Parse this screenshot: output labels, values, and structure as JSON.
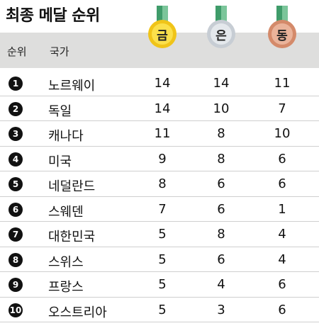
{
  "title": "최종 메달 순위",
  "header": {
    "rank_label": "순위",
    "country_label": "국가"
  },
  "medals": {
    "gold": {
      "label": "금",
      "color": "#f0c419"
    },
    "silver": {
      "label": "은",
      "color": "#c7cdd4"
    },
    "bronze": {
      "label": "동",
      "color": "#d48a6a"
    }
  },
  "rows": [
    {
      "rank": "1",
      "country": "노르웨이",
      "gold": "14",
      "silver": "14",
      "bronze": "11"
    },
    {
      "rank": "2",
      "country": "독일",
      "gold": "14",
      "silver": "10",
      "bronze": "7"
    },
    {
      "rank": "3",
      "country": "캐나다",
      "gold": "11",
      "silver": "8",
      "bronze": "10"
    },
    {
      "rank": "4",
      "country": "미국",
      "gold": "9",
      "silver": "8",
      "bronze": "6"
    },
    {
      "rank": "5",
      "country": "네덜란드",
      "gold": "8",
      "silver": "6",
      "bronze": "6"
    },
    {
      "rank": "6",
      "country": "스웨덴",
      "gold": "7",
      "silver": "6",
      "bronze": "1"
    },
    {
      "rank": "7",
      "country": "대한민국",
      "gold": "5",
      "silver": "8",
      "bronze": "4"
    },
    {
      "rank": "8",
      "country": "스위스",
      "gold": "5",
      "silver": "6",
      "bronze": "4"
    },
    {
      "rank": "9",
      "country": "프랑스",
      "gold": "5",
      "silver": "4",
      "bronze": "6"
    },
    {
      "rank": "10",
      "country": "오스트리아",
      "gold": "5",
      "silver": "3",
      "bronze": "6"
    }
  ]
}
